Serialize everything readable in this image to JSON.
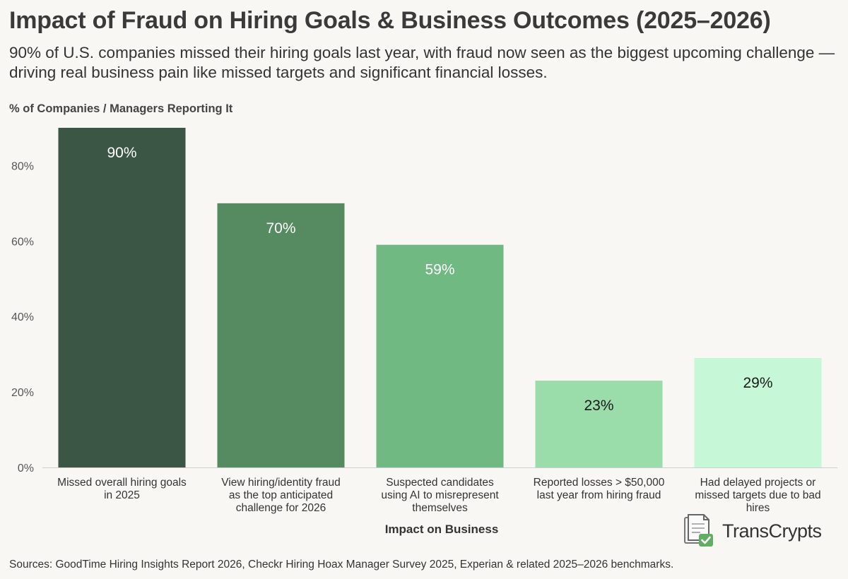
{
  "header": {
    "title": "Impact of Fraud on Hiring Goals & Business Outcomes (2025–2026)",
    "subtitle": "90% of U.S. companies missed their hiring goals last year, with fraud now seen as the biggest upcoming challenge — driving real business pain like missed targets and significant financial losses."
  },
  "footer": {
    "source": "Sources: GoodTime Hiring Insights Report 2026, Checkr Hiring Hoax Manager Survey 2025, Experian & related 2025–2026 benchmarks.",
    "brand": "TransCrypts"
  },
  "chart_data": {
    "type": "bar",
    "title": "Impact of Fraud on Hiring Goals & Business Outcomes (2025–2026)",
    "ylabel": "% of Companies / Managers Reporting It",
    "xlabel": "Impact on Business",
    "ylim": [
      0,
      90
    ],
    "yticks": [
      0,
      20,
      40,
      60,
      80
    ],
    "ytick_labels": [
      "0%",
      "20%",
      "40%",
      "60%",
      "80%"
    ],
    "grid": false,
    "categories": [
      [
        "Missed overall hiring goals",
        "in 2025"
      ],
      [
        "View hiring/identity fraud",
        "as the top anticipated",
        "challenge for 2026"
      ],
      [
        "Suspected candidates",
        "using AI to misrepresent",
        "themselves"
      ],
      [
        "Reported losses > $50,000",
        "last year from hiring fraud"
      ],
      [
        "Had delayed projects or",
        "missed targets due to bad",
        "hires"
      ]
    ],
    "values": [
      90,
      70,
      59,
      23,
      29
    ],
    "data_labels": [
      "90%",
      "70%",
      "59%",
      "23%",
      "29%"
    ],
    "colors": [
      "#3c5645",
      "#568b61",
      "#71b983",
      "#9bdcab",
      "#c6f7d6"
    ],
    "label_colors": [
      "#ffffff",
      "#ffffff",
      "#ffffff",
      "#1a1a1a",
      "#1a1a1a"
    ]
  }
}
